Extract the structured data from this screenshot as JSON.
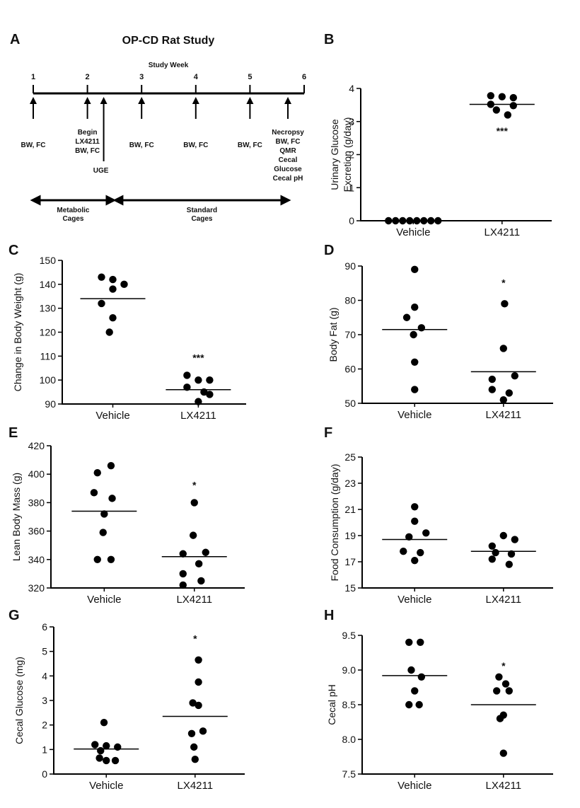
{
  "timeline": {
    "panel_letter": "A",
    "title": "OP-CD Rat Study",
    "week_axis_label": "Study Week",
    "weeks": [
      "1",
      "2",
      "3",
      "4",
      "5",
      "6"
    ],
    "events": [
      {
        "week": 1,
        "lines": [
          "BW, FC"
        ]
      },
      {
        "week": 2,
        "lines": [
          "Begin",
          "LX4211",
          "BW, FC"
        ]
      },
      {
        "week": 2.3,
        "lines": [
          "UGE"
        ]
      },
      {
        "week": 3,
        "lines": [
          "BW, FC"
        ]
      },
      {
        "week": 4,
        "lines": [
          "BW, FC"
        ]
      },
      {
        "week": 5,
        "lines": [
          "BW, FC"
        ]
      },
      {
        "week": 5.7,
        "lines": [
          "Necropsy",
          "BW, FC",
          "QMR",
          "Cecal",
          "Glucose",
          "Cecal pH"
        ]
      }
    ],
    "phases": [
      {
        "lines": [
          "Metabolic",
          "Cages"
        ],
        "start_week": 1,
        "end_week": 2.5
      },
      {
        "lines": [
          "Standard",
          "Cages"
        ],
        "start_week": 2.5,
        "end_week": 5.7
      }
    ]
  },
  "chart_data": [
    {
      "panel": "B",
      "type": "scatter",
      "categories": [
        "Vehicle",
        "LX4211"
      ],
      "ylabel": "Urinary Glucose Excretion (g/day)",
      "ylabel_lines": [
        "Urinary Glucose",
        "Excretion (g/day)"
      ],
      "ylim": [
        0,
        4
      ],
      "yticks": [
        "0",
        "1",
        "2",
        "3",
        "4"
      ],
      "series": [
        {
          "name": "Vehicle",
          "values": [
            0,
            0,
            0,
            0,
            0,
            0,
            0,
            0
          ],
          "offsets": [
            -3.5,
            -2.5,
            -1.5,
            -0.5,
            0.5,
            1.5,
            2.5,
            3.5
          ],
          "mean": 0
        },
        {
          "name": "LX4211",
          "values": [
            3.78,
            3.75,
            3.72,
            3.52,
            3.48,
            3.35,
            3.2
          ],
          "offsets": [
            -1,
            0,
            1,
            -1,
            1,
            -0.5,
            0.5
          ],
          "mean": 3.52
        }
      ],
      "significance": [
        "",
        "***"
      ],
      "sig_values": [
        null,
        2.7
      ]
    },
    {
      "panel": "C",
      "type": "scatter",
      "categories": [
        "Vehicle",
        "LX4211"
      ],
      "ylabel": "Change in Body Weight (g)",
      "ylim": [
        90,
        150
      ],
      "yticks": [
        "90",
        "100",
        "110",
        "120",
        "130",
        "140",
        "150"
      ],
      "series": [
        {
          "name": "Vehicle",
          "values": [
            143,
            142,
            140,
            138,
            132,
            126,
            120
          ],
          "offsets": [
            -1,
            0,
            1,
            0,
            -1,
            0,
            -0.3
          ],
          "mean": 134
        },
        {
          "name": "LX4211",
          "values": [
            102,
            100,
            100,
            97,
            95,
            94,
            91
          ],
          "offsets": [
            -1,
            0,
            1,
            -1,
            0.5,
            1,
            0
          ],
          "mean": 96
        },
        {
          "name": "_",
          "values": []
        }
      ],
      "significance": [
        "",
        "***"
      ],
      "sig_values": [
        null,
        109
      ]
    },
    {
      "panel": "D",
      "type": "scatter",
      "categories": [
        "Vehicle",
        "LX4211"
      ],
      "ylabel": "Body Fat (g)",
      "ylim": [
        50,
        90
      ],
      "yticks": [
        "50",
        "60",
        "70",
        "80",
        "90"
      ],
      "series": [
        {
          "name": "Vehicle",
          "values": [
            89,
            78,
            75,
            72,
            70,
            62,
            54
          ],
          "offsets": [
            0,
            0,
            -0.7,
            0.6,
            -0.1,
            0,
            0
          ],
          "mean": 71.5
        },
        {
          "name": "LX4211",
          "values": [
            79,
            66,
            58,
            57,
            54,
            53,
            51
          ],
          "offsets": [
            0.1,
            0,
            1,
            -1,
            -1,
            0.5,
            0
          ],
          "mean": 59.2
        }
      ],
      "significance": [
        "",
        "*"
      ],
      "sig_values": [
        null,
        85
      ]
    },
    {
      "panel": "E",
      "type": "scatter",
      "categories": [
        "Vehicle",
        "LX4211"
      ],
      "ylabel": "Lean Body Mass (g)",
      "ylim": [
        320,
        420
      ],
      "yticks": [
        "320",
        "340",
        "360",
        "380",
        "400",
        "420"
      ],
      "series": [
        {
          "name": "Vehicle",
          "values": [
            406,
            401,
            387,
            383,
            372,
            359,
            340,
            340
          ],
          "offsets": [
            0.6,
            -0.6,
            -0.9,
            0.7,
            0,
            -0.1,
            -0.6,
            0.6
          ],
          "mean": 374
        },
        {
          "name": "LX4211",
          "values": [
            380,
            357,
            345,
            344,
            337,
            330,
            325,
            322
          ],
          "offsets": [
            0,
            -0.1,
            1,
            -1,
            0.4,
            -1,
            0.6,
            -1
          ],
          "mean": 342
        }
      ],
      "significance": [
        "",
        "*"
      ],
      "sig_values": [
        null,
        392
      ]
    },
    {
      "panel": "F",
      "type": "scatter",
      "categories": [
        "Vehicle",
        "LX4211"
      ],
      "ylabel": "Food Consumption (g/day)",
      "ylim": [
        15,
        25
      ],
      "yticks": [
        "15",
        "17",
        "19",
        "21",
        "23",
        "25"
      ],
      "series": [
        {
          "name": "Vehicle",
          "values": [
            21.2,
            20.1,
            19.2,
            18.9,
            17.8,
            17.7,
            17.1
          ],
          "offsets": [
            0,
            0,
            1,
            -0.5,
            -1,
            0.5,
            0
          ],
          "mean": 18.7
        },
        {
          "name": "LX4211",
          "values": [
            19,
            18.7,
            18.2,
            17.7,
            17.6,
            17.2,
            16.8
          ],
          "offsets": [
            0,
            1,
            -1,
            -0.7,
            0.7,
            -1,
            0.5
          ],
          "mean": 17.8
        }
      ],
      "significance": [
        "",
        ""
      ],
      "sig_values": [
        null,
        null
      ]
    },
    {
      "panel": "G",
      "type": "scatter",
      "categories": [
        "Vehicle",
        "LX4211"
      ],
      "ylabel": "Cecal Glucose (mg)",
      "ylim": [
        0,
        6
      ],
      "yticks": [
        "0",
        "1",
        "2",
        "3",
        "4",
        "5",
        "6"
      ],
      "series": [
        {
          "name": "Vehicle",
          "values": [
            2.1,
            1.2,
            1.15,
            1.1,
            0.95,
            0.65,
            0.55,
            0.55
          ],
          "offsets": [
            -0.2,
            -1,
            0,
            1,
            -0.5,
            -0.6,
            0,
            0.8
          ],
          "mean": 1.02
        },
        {
          "name": "LX4211",
          "values": [
            4.65,
            3.75,
            2.9,
            2.8,
            1.75,
            1.65,
            1.1,
            0.6
          ],
          "offsets": [
            0.3,
            0.3,
            -0.2,
            0.3,
            0.7,
            -0.3,
            -0.1,
            0
          ],
          "mean": 2.35
        }
      ],
      "significance": [
        "",
        "*"
      ],
      "sig_values": [
        null,
        5.5
      ]
    },
    {
      "panel": "H",
      "type": "scatter",
      "categories": [
        "Vehicle",
        "LX4211"
      ],
      "ylabel": "Cecal pH",
      "ylim": [
        7.5,
        9.5
      ],
      "yticks": [
        "7.5",
        "8.0",
        "8.5",
        "9.0",
        "9.5"
      ],
      "series": [
        {
          "name": "Vehicle",
          "values": [
            9.4,
            9.4,
            9.0,
            8.9,
            8.7,
            8.5,
            8.5
          ],
          "offsets": [
            -0.5,
            0.5,
            -0.3,
            0.6,
            0,
            -0.5,
            0.4
          ],
          "mean": 8.92
        },
        {
          "name": "LX4211",
          "values": [
            8.9,
            8.8,
            8.7,
            8.7,
            8.35,
            8.3,
            7.8
          ],
          "offsets": [
            -0.4,
            0.2,
            -0.6,
            0.5,
            0,
            -0.3,
            0
          ],
          "mean": 8.5
        }
      ],
      "significance": [
        "",
        "*"
      ],
      "sig_values": [
        null,
        9.05
      ]
    }
  ]
}
